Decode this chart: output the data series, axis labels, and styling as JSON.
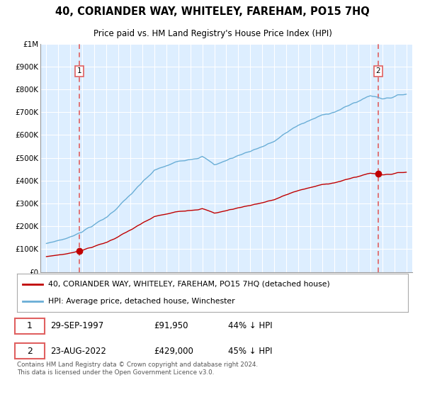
{
  "title": "40, CORIANDER WAY, WHITELEY, FAREHAM, PO15 7HQ",
  "subtitle": "Price paid vs. HM Land Registry's House Price Index (HPI)",
  "footnote": "Contains HM Land Registry data © Crown copyright and database right 2024.\nThis data is licensed under the Open Government Licence v3.0.",
  "legend_line1": "40, CORIANDER WAY, WHITELEY, FAREHAM, PO15 7HQ (detached house)",
  "legend_line2": "HPI: Average price, detached house, Winchester",
  "annotation1": {
    "label": "1",
    "date_idx": 1997.75,
    "price": 91950,
    "text": "29-SEP-1997",
    "price_text": "£91,950",
    "pct_text": "44% ↓ HPI"
  },
  "annotation2": {
    "label": "2",
    "date_idx": 2022.65,
    "price": 429000,
    "text": "23-AUG-2022",
    "price_text": "£429,000",
    "pct_text": "45% ↓ HPI"
  },
  "ylim": [
    0,
    1000000
  ],
  "yticks": [
    0,
    100000,
    200000,
    300000,
    400000,
    500000,
    600000,
    700000,
    800000,
    900000,
    1000000
  ],
  "ytick_labels": [
    "£0",
    "£100K",
    "£200K",
    "£300K",
    "£400K",
    "£500K",
    "£600K",
    "£700K",
    "£800K",
    "£900K",
    "£1M"
  ],
  "xlim_start": 1994.5,
  "xlim_end": 2025.5,
  "hpi_color": "#6aaed6",
  "price_color": "#c00000",
  "dashed_line_color": "#e06060",
  "chart_bg_color": "#ddeeff",
  "background_color": "#ffffff",
  "grid_color": "#ffffff"
}
